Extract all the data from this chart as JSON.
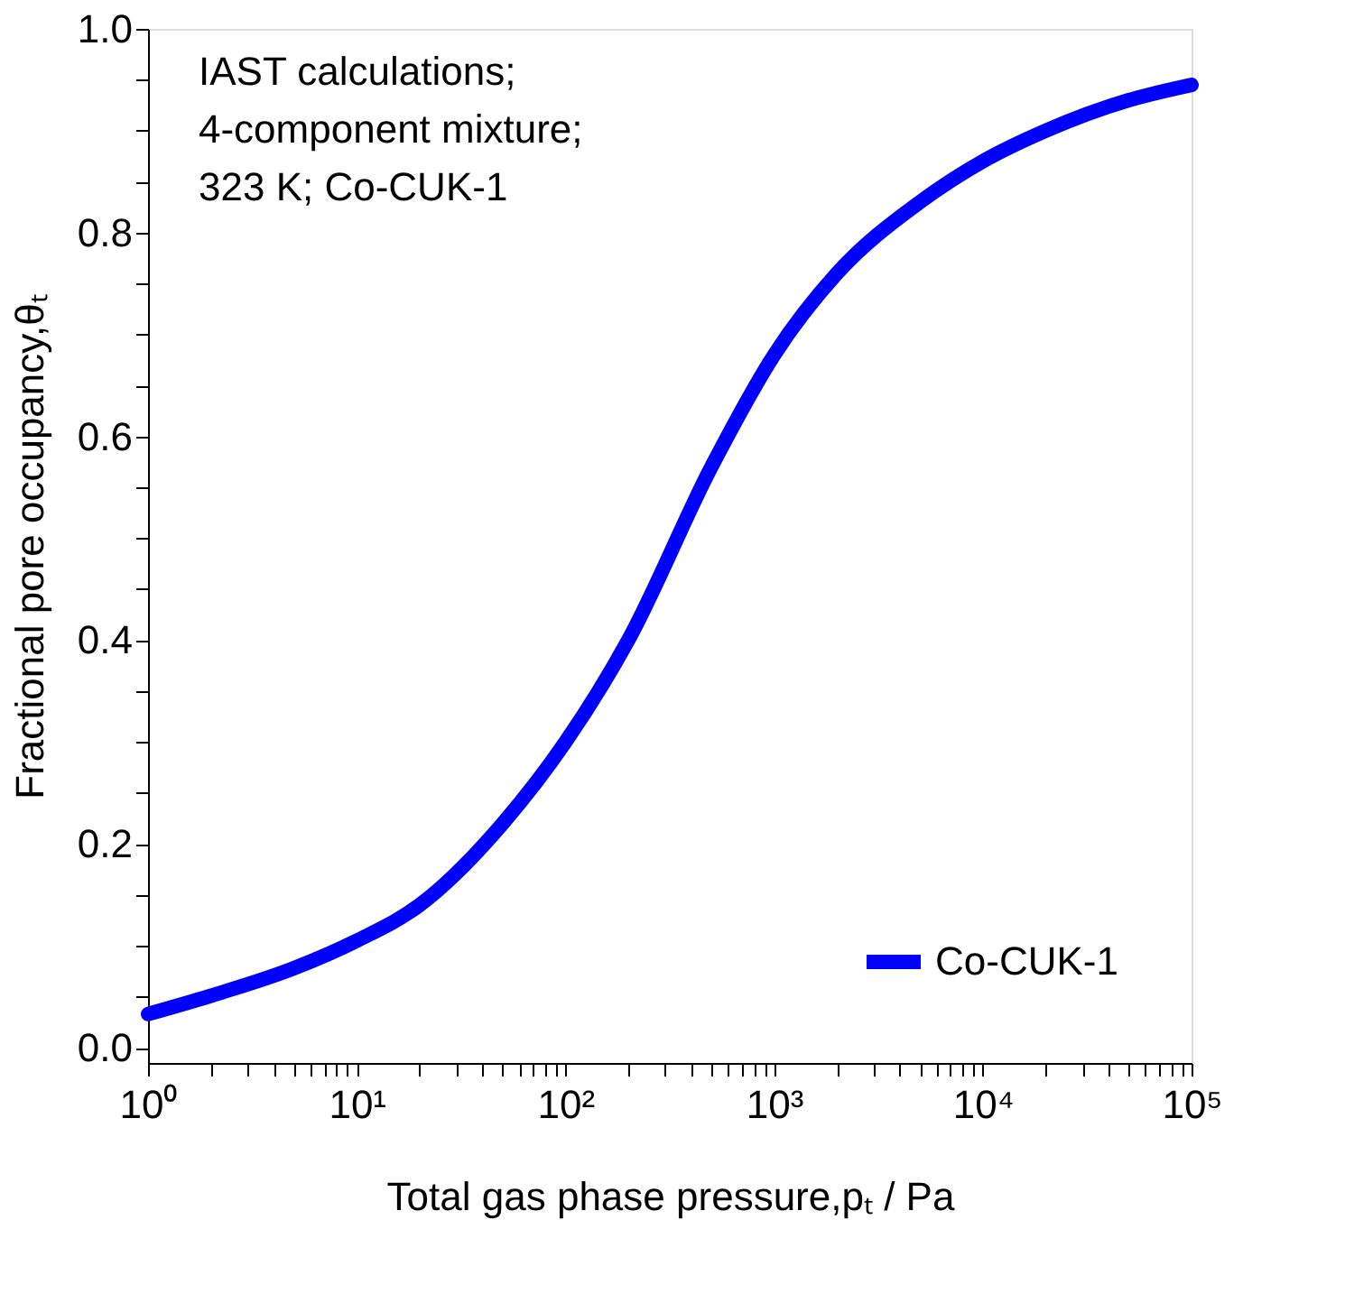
{
  "chart_data": {
    "type": "line",
    "xlabel": "Total gas phase pressure,pₜ / Pa",
    "ylabel": "Fractional pore occupancy,θₜ",
    "annotations": [
      "IAST calculations;",
      "4-component mixture;",
      "323 K; Co-CUK-1"
    ],
    "x": [
      1,
      2,
      5,
      10,
      20,
      50,
      100,
      200,
      500,
      1000,
      2000,
      5000,
      10000,
      20000,
      50000,
      100000
    ],
    "series": [
      {
        "name": "Co-CUK-1",
        "color": "#0000ff",
        "values": [
          0.033,
          0.051,
          0.078,
          0.105,
          0.14,
          0.22,
          0.3,
          0.4,
          0.57,
          0.68,
          0.76,
          0.83,
          0.87,
          0.9,
          0.93,
          0.945
        ]
      }
    ],
    "log": "x",
    "xlim": [
      1,
      100000
    ],
    "ylim": [
      -0.015,
      1.0
    ],
    "xticks": [
      {
        "value": 1,
        "label": "10⁰"
      },
      {
        "value": 2,
        "label": null
      },
      {
        "value": 3,
        "label": null
      },
      {
        "value": 4,
        "label": null
      },
      {
        "value": 5,
        "label": null
      },
      {
        "value": 6,
        "label": null
      },
      {
        "value": 7,
        "label": null
      },
      {
        "value": 8,
        "label": null
      },
      {
        "value": 9,
        "label": null
      },
      {
        "value": 10,
        "label": "10¹"
      },
      {
        "value": 20,
        "label": null
      },
      {
        "value": 30,
        "label": null
      },
      {
        "value": 40,
        "label": null
      },
      {
        "value": 50,
        "label": null
      },
      {
        "value": 60,
        "label": null
      },
      {
        "value": 70,
        "label": null
      },
      {
        "value": 80,
        "label": null
      },
      {
        "value": 90,
        "label": null
      },
      {
        "value": 100,
        "label": "10²"
      },
      {
        "value": 200,
        "label": null
      },
      {
        "value": 300,
        "label": null
      },
      {
        "value": 400,
        "label": null
      },
      {
        "value": 500,
        "label": null
      },
      {
        "value": 600,
        "label": null
      },
      {
        "value": 700,
        "label": null
      },
      {
        "value": 800,
        "label": null
      },
      {
        "value": 900,
        "label": null
      },
      {
        "value": 1000,
        "label": "10³"
      },
      {
        "value": 2000,
        "label": null
      },
      {
        "value": 3000,
        "label": null
      },
      {
        "value": 4000,
        "label": null
      },
      {
        "value": 5000,
        "label": null
      },
      {
        "value": 6000,
        "label": null
      },
      {
        "value": 7000,
        "label": null
      },
      {
        "value": 8000,
        "label": null
      },
      {
        "value": 9000,
        "label": null
      },
      {
        "value": 10000,
        "label": "10⁴"
      },
      {
        "value": 20000,
        "label": null
      },
      {
        "value": 30000,
        "label": null
      },
      {
        "value": 40000,
        "label": null
      },
      {
        "value": 50000,
        "label": null
      },
      {
        "value": 60000,
        "label": null
      },
      {
        "value": 70000,
        "label": null
      },
      {
        "value": 80000,
        "label": null
      },
      {
        "value": 90000,
        "label": null
      },
      {
        "value": 100000,
        "label": "10⁵"
      }
    ],
    "yticks": [
      {
        "value": 0,
        "label": "0.0"
      },
      {
        "value": 0.05,
        "label": null
      },
      {
        "value": 0.1,
        "label": null
      },
      {
        "value": 0.15,
        "label": null
      },
      {
        "value": 0.2,
        "label": "0.2"
      },
      {
        "value": 0.25,
        "label": null
      },
      {
        "value": 0.3,
        "label": null
      },
      {
        "value": 0.35,
        "label": null
      },
      {
        "value": 0.4,
        "label": "0.4"
      },
      {
        "value": 0.45,
        "label": null
      },
      {
        "value": 0.5,
        "label": null
      },
      {
        "value": 0.55,
        "label": null
      },
      {
        "value": 0.6,
        "label": "0.6"
      },
      {
        "value": 0.65,
        "label": null
      },
      {
        "value": 0.7,
        "label": null
      },
      {
        "value": 0.75,
        "label": null
      },
      {
        "value": 0.8,
        "label": "0.8"
      },
      {
        "value": 0.85,
        "label": null
      },
      {
        "value": 0.9,
        "label": null
      },
      {
        "value": 0.95,
        "label": null
      },
      {
        "value": 1.0,
        "label": "1.0"
      }
    ],
    "grid": false,
    "legend": "bottom right",
    "line_style": "solid"
  }
}
